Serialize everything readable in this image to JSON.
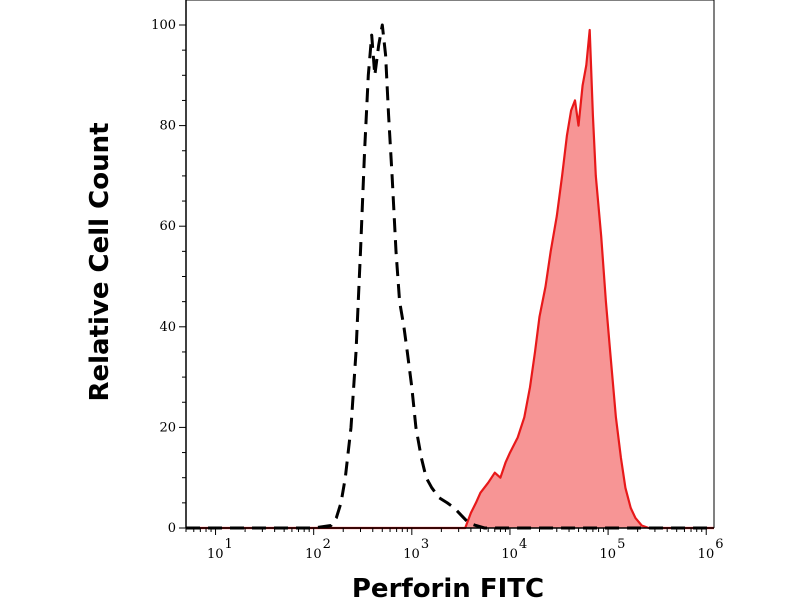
{
  "chart_data": {
    "type": "area",
    "title": "",
    "xlabel": "Perforin FITC",
    "ylabel": "Relative Cell Count",
    "x_scale": "log",
    "xlim": [
      5,
      1200000
    ],
    "ylim": [
      0,
      100
    ],
    "x_ticks": [
      {
        "base": "10",
        "exp": "1",
        "value": 10
      },
      {
        "base": "10",
        "exp": "2",
        "value": 100
      },
      {
        "base": "10",
        "exp": "3",
        "value": 1000
      },
      {
        "base": "10",
        "exp": "4",
        "value": 10000
      },
      {
        "base": "10",
        "exp": "5",
        "value": 100000
      },
      {
        "base": "10",
        "exp": "6",
        "value": 1000000
      }
    ],
    "y_ticks": [
      {
        "label": "0",
        "value": 0
      },
      {
        "label": "20",
        "value": 20
      },
      {
        "label": "40",
        "value": 40
      },
      {
        "label": "60",
        "value": 60
      },
      {
        "label": "80",
        "value": 80
      },
      {
        "label": "100",
        "value": 100
      }
    ],
    "grid": false,
    "legend": "none",
    "series": [
      {
        "style": "dashed",
        "color": "#000000",
        "fill": "none",
        "points": [
          [
            5,
            0
          ],
          [
            100,
            0
          ],
          [
            150,
            0.5
          ],
          [
            170,
            2
          ],
          [
            190,
            5
          ],
          [
            210,
            10
          ],
          [
            240,
            20
          ],
          [
            270,
            35
          ],
          [
            300,
            55
          ],
          [
            330,
            75
          ],
          [
            360,
            90
          ],
          [
            390,
            98
          ],
          [
            420,
            90
          ],
          [
            460,
            96
          ],
          [
            500,
            100
          ],
          [
            540,
            94
          ],
          [
            580,
            82
          ],
          [
            630,
            70
          ],
          [
            690,
            55
          ],
          [
            750,
            45
          ],
          [
            830,
            40
          ],
          [
            900,
            35
          ],
          [
            1000,
            28
          ],
          [
            1100,
            20
          ],
          [
            1250,
            14
          ],
          [
            1400,
            10
          ],
          [
            1600,
            8
          ],
          [
            1900,
            6
          ],
          [
            2300,
            5
          ],
          [
            2700,
            4
          ],
          [
            3200,
            2.5
          ],
          [
            3800,
            1
          ],
          [
            4500,
            0.5
          ],
          [
            5500,
            0
          ],
          [
            1200000,
            0
          ]
        ]
      },
      {
        "style": "solid",
        "color": "#e8191a",
        "fill": "#f79595",
        "points": [
          [
            5,
            0
          ],
          [
            3500,
            0
          ],
          [
            4000,
            3
          ],
          [
            4500,
            5
          ],
          [
            5000,
            7
          ],
          [
            6000,
            9
          ],
          [
            7000,
            11
          ],
          [
            8000,
            10
          ],
          [
            9000,
            13
          ],
          [
            10000,
            15
          ],
          [
            12000,
            18
          ],
          [
            14000,
            22
          ],
          [
            16000,
            28
          ],
          [
            18000,
            35
          ],
          [
            20000,
            42
          ],
          [
            23000,
            48
          ],
          [
            26000,
            55
          ],
          [
            30000,
            62
          ],
          [
            34000,
            70
          ],
          [
            38000,
            78
          ],
          [
            42000,
            83
          ],
          [
            46000,
            85
          ],
          [
            50000,
            80
          ],
          [
            55000,
            88
          ],
          [
            60000,
            92
          ],
          [
            65000,
            99
          ],
          [
            70000,
            82
          ],
          [
            75000,
            70
          ],
          [
            85000,
            58
          ],
          [
            95000,
            45
          ],
          [
            105000,
            35
          ],
          [
            120000,
            22
          ],
          [
            135000,
            14
          ],
          [
            150000,
            8
          ],
          [
            170000,
            4
          ],
          [
            190000,
            2
          ],
          [
            220000,
            0.5
          ],
          [
            260000,
            0
          ],
          [
            1200000,
            0
          ]
        ]
      }
    ]
  }
}
